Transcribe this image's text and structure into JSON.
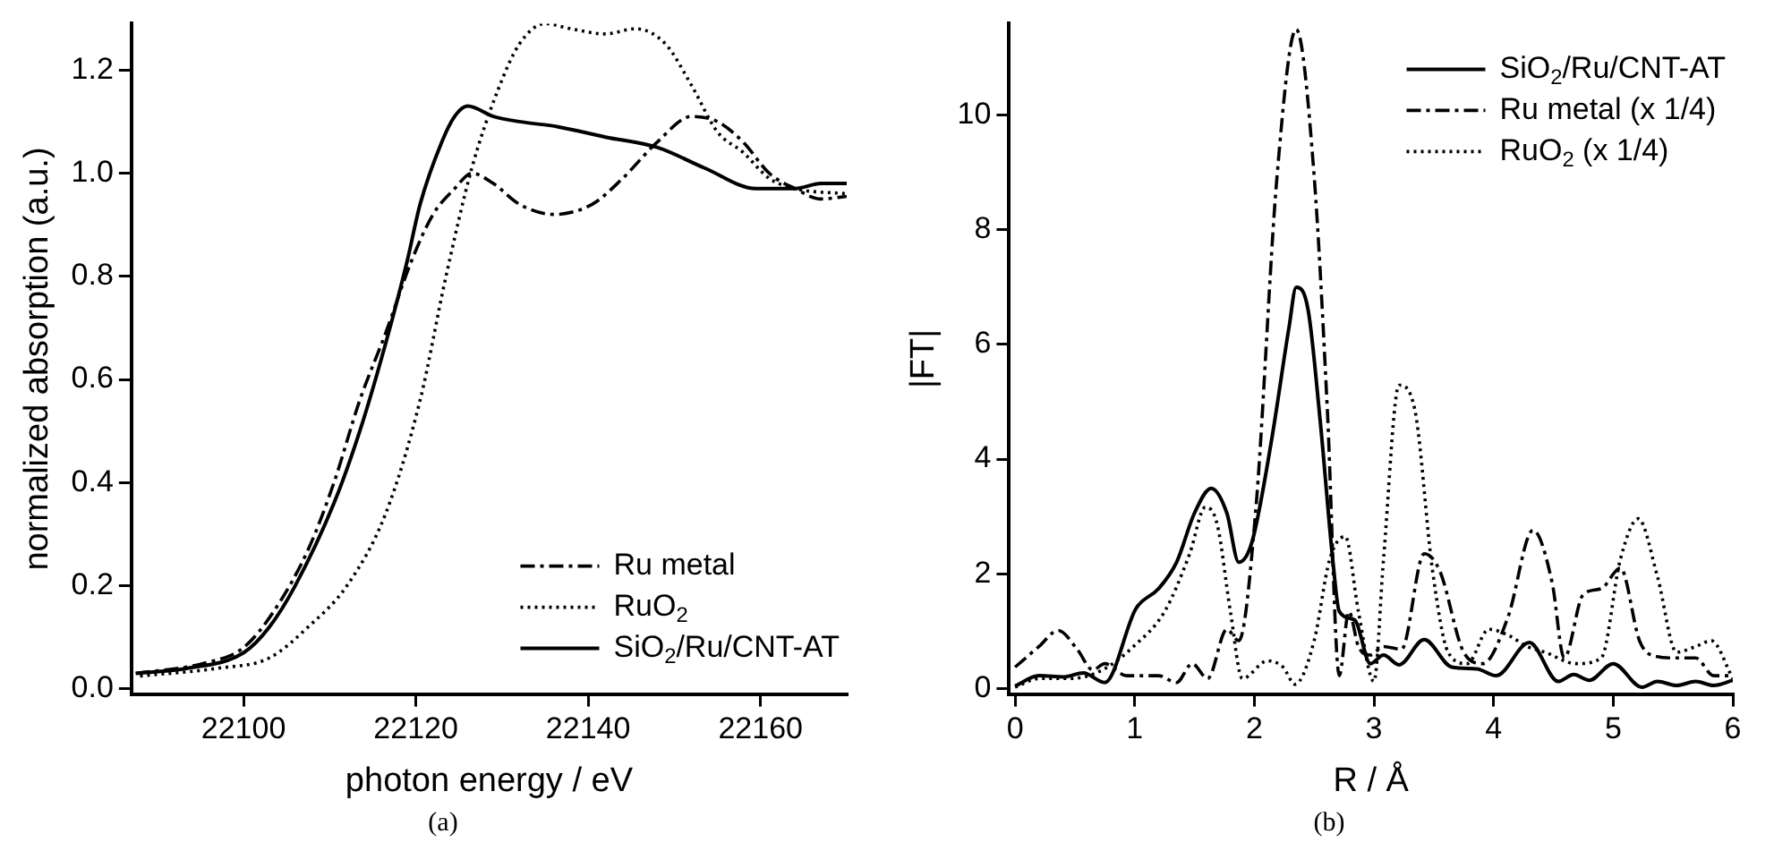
{
  "chart_data": [
    {
      "type": "line",
      "xlabel": "photon energy / eV",
      "ylabel": "normalized absorption (a.u.)",
      "xlim": [
        22087,
        22170
      ],
      "ylim": [
        -0.01,
        1.29
      ],
      "xticks": [
        22100,
        22120,
        22140,
        22160
      ],
      "yticks": [
        {
          "value": 0,
          "label": "0.0"
        },
        {
          "value": 0.2,
          "label": "0.2"
        },
        {
          "value": 0.4,
          "label": "0.4"
        },
        {
          "value": 0.6,
          "label": "0.6"
        },
        {
          "value": 0.8,
          "label": "0.8"
        },
        {
          "value": 1,
          "label": "1.0"
        },
        {
          "value": 1.2,
          "label": "1.2"
        }
      ],
      "grid": false,
      "legend": "bottom right",
      "marker": "none",
      "annotations": [
        "(a)"
      ],
      "series": [
        {
          "name": "Ru metal",
          "color": "#000000",
          "line_style": "dashed",
          "x": [
            22087.5,
            22095.5,
            22100,
            22103.5,
            22107.5,
            22110.5,
            22113.5,
            22116.5,
            22119.5,
            22122,
            22124.5,
            22126.5,
            22129,
            22132,
            22136,
            22140.5,
            22144,
            22148,
            22152,
            22155,
            22158,
            22161,
            22164,
            22167,
            22170
          ],
          "values": [
            0.03,
            0.05,
            0.08,
            0.15,
            0.27,
            0.4,
            0.56,
            0.69,
            0.83,
            0.92,
            0.97,
            1.0,
            0.98,
            0.94,
            0.92,
            0.94,
            0.99,
            1.06,
            1.11,
            1.1,
            1.06,
            1.0,
            0.97,
            0.95,
            0.955
          ]
        },
        {
          "name": "RuO$_{2}$",
          "color": "#000000",
          "line_style": "dotted",
          "x": [
            22088,
            22097,
            22103,
            22107.5,
            22112,
            22116.5,
            22120.5,
            22123.5,
            22126.5,
            22129.5,
            22132,
            22135,
            22138,
            22142,
            22145.5,
            22149,
            22152,
            22155,
            22158,
            22161,
            22164,
            22170
          ],
          "values": [
            0.025,
            0.04,
            0.06,
            0.12,
            0.2,
            0.34,
            0.56,
            0.8,
            1.01,
            1.16,
            1.25,
            1.29,
            1.28,
            1.27,
            1.28,
            1.25,
            1.17,
            1.08,
            1.04,
            0.99,
            0.97,
            0.96
          ]
        },
        {
          "name": "SiO$_{2}$/Ru/CNT-AT",
          "color": "#000000",
          "line_style": "solid",
          "x": [
            22087.5,
            22093.5,
            22100,
            22103,
            22106,
            22110.5,
            22113.5,
            22116.5,
            22119,
            22120.5,
            22123,
            22124.5,
            22126,
            22129,
            22132,
            22136.5,
            22142,
            22148,
            22153.5,
            22159.5,
            22164,
            22167,
            22170
          ],
          "values": [
            0.03,
            0.04,
            0.07,
            0.12,
            0.2,
            0.36,
            0.5,
            0.67,
            0.83,
            0.94,
            1.06,
            1.11,
            1.13,
            1.11,
            1.1,
            1.09,
            1.07,
            1.05,
            1.01,
            0.97,
            0.97,
            0.98,
            0.98
          ]
        }
      ]
    },
    {
      "type": "line",
      "xlabel": "R / Å",
      "ylabel": "|FT|",
      "xlim": [
        -0.05,
        6
      ],
      "ylim": [
        -0.1,
        11.6
      ],
      "xticks": [
        0,
        1,
        2,
        3,
        4,
        5,
        6
      ],
      "yticks": [
        0,
        2,
        4,
        6,
        8,
        10
      ],
      "grid": false,
      "legend": "top right",
      "marker": "none",
      "annotations": [
        "(b)"
      ],
      "series": [
        {
          "name": "SiO$_{2}$/Ru/CNT-AT",
          "color": "#000000",
          "line_style": "solid",
          "x": [
            0,
            0.2,
            0.41,
            0.57,
            0.75,
            1.01,
            1.2,
            1.35,
            1.5,
            1.64,
            1.77,
            1.87,
            1.98,
            2.14,
            2.29,
            2.35,
            2.45,
            2.55,
            2.66,
            2.71,
            2.84,
            2.97,
            3.08,
            3.21,
            3.42,
            3.65,
            3.86,
            4.02,
            4.3,
            4.54,
            4.67,
            4.8,
            5.0,
            5.24,
            5.37,
            5.53,
            5.69,
            5.84,
            6.0
          ],
          "values": [
            0.04,
            0.22,
            0.2,
            0.27,
            0.1,
            1.39,
            1.74,
            2.2,
            3.06,
            3.49,
            3.06,
            2.2,
            2.55,
            4.28,
            6.3,
            7.0,
            6.6,
            4.68,
            2.15,
            1.34,
            1.19,
            0.43,
            0.58,
            0.41,
            0.85,
            0.37,
            0.34,
            0.22,
            0.8,
            0.12,
            0.24,
            0.14,
            0.43,
            0.02,
            0.12,
            0.05,
            0.12,
            0.05,
            0.14
          ]
        },
        {
          "name": "Ru metal (x 1/4)",
          "color": "#000000",
          "line_style": "dashed",
          "x": [
            0,
            0.2,
            0.36,
            0.52,
            0.65,
            0.75,
            0.93,
            1.2,
            1.35,
            1.48,
            1.61,
            1.77,
            1.87,
            2.01,
            2.19,
            2.35,
            2.5,
            2.61,
            2.71,
            2.79,
            2.87,
            2.97,
            3.08,
            3.23,
            3.42,
            3.55,
            3.75,
            3.91,
            4.12,
            4.33,
            4.49,
            4.59,
            4.75,
            4.9,
            5.06,
            5.22,
            5.32,
            5.53,
            5.69,
            5.84,
            6.0
          ],
          "values": [
            0.37,
            0.73,
            1.01,
            0.68,
            0.32,
            0.43,
            0.22,
            0.22,
            0.1,
            0.43,
            0.17,
            1.03,
            0.83,
            3.06,
            8.94,
            11.5,
            8.94,
            4.88,
            0.22,
            1.34,
            0.73,
            0.58,
            0.73,
            0.68,
            2.35,
            2.05,
            0.63,
            0.43,
            1.24,
            2.76,
            1.84,
            0.53,
            1.64,
            1.74,
            2.1,
            0.83,
            0.58,
            0.53,
            0.53,
            0.22,
            0.22
          ]
        },
        {
          "name": "RuO$_{2}$ (x 1/4)",
          "color": "#000000",
          "line_style": "dotted",
          "x": [
            0,
            0.2,
            0.46,
            0.73,
            0.99,
            1.25,
            1.46,
            1.59,
            1.69,
            1.8,
            1.9,
            2.11,
            2.24,
            2.34,
            2.5,
            2.63,
            2.76,
            2.87,
            3.0,
            3.08,
            3.21,
            3.34,
            3.49,
            3.62,
            3.78,
            3.96,
            4.12,
            4.28,
            4.43,
            4.69,
            4.9,
            5.06,
            5.21,
            5.37,
            5.53,
            5.69,
            5.82,
            6.0
          ],
          "values": [
            0.02,
            0.17,
            0.17,
            0.32,
            0.73,
            1.34,
            2.35,
            3.16,
            2.86,
            1.34,
            0.17,
            0.48,
            0.37,
            0.07,
            0.83,
            2.25,
            2.65,
            1.34,
            0.12,
            2.25,
            5.29,
            4.88,
            2.05,
            0.63,
            0.43,
            1.03,
            0.93,
            0.73,
            0.63,
            0.43,
            0.53,
            2.25,
            2.96,
            1.95,
            0.63,
            0.73,
            0.83,
            0.17
          ]
        }
      ]
    }
  ]
}
